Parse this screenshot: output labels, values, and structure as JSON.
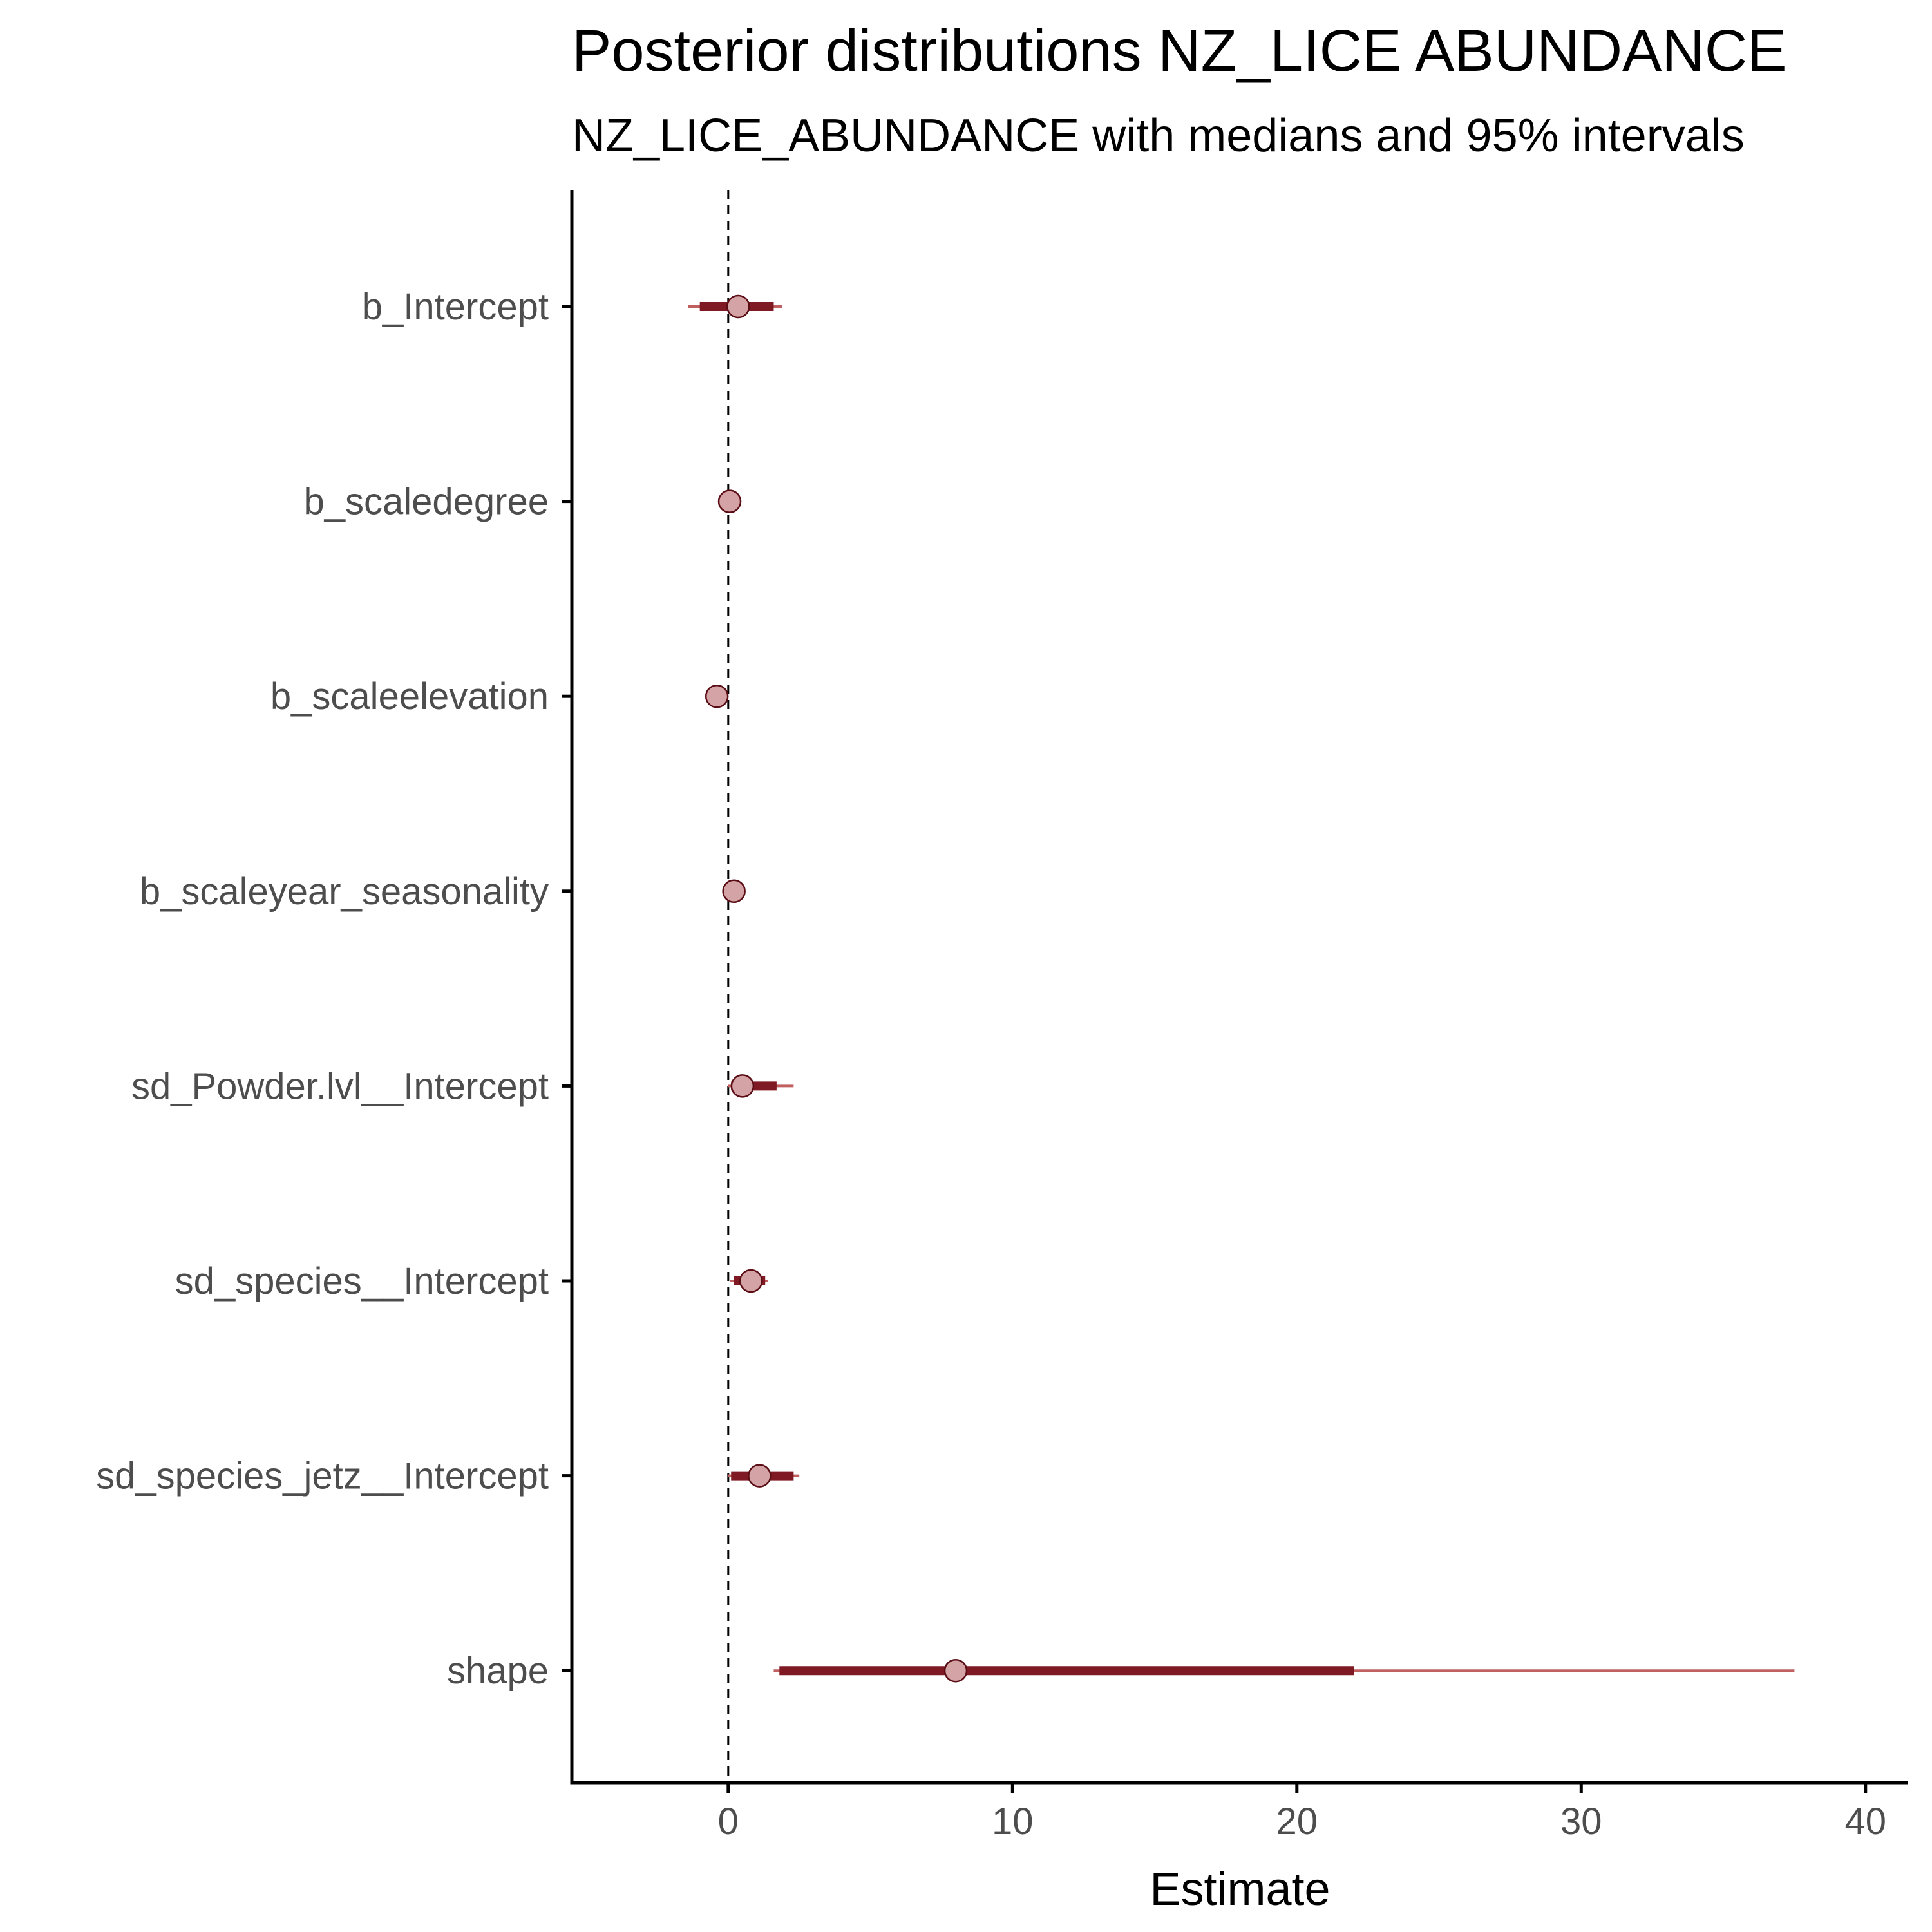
{
  "chart_data": {
    "type": "interval",
    "title": "Posterior distributions NZ_LICE ABUNDANCE",
    "subtitle": "NZ_LICE_ABUNDANCE with medians and 95% intervals",
    "xlabel": "Estimate",
    "ylabel": "",
    "xlim": [
      -5.5,
      41.5
    ],
    "xticks": [
      0,
      10,
      20,
      30,
      40
    ],
    "reference_line": 0,
    "grid": false,
    "colors": {
      "outer_interval": "#c06060",
      "inner_interval": "#7f1a24",
      "point_fill": "#d4a3a5",
      "point_stroke": "#5a0d14",
      "reference_line": "#000000",
      "axis": "#000000"
    },
    "parameters": [
      {
        "name": "b_Intercept",
        "median": 0.35,
        "inner": [
          -1.0,
          1.6
        ],
        "outer": [
          -1.4,
          1.9
        ]
      },
      {
        "name": "b_scaledegree",
        "median": 0.05,
        "inner": [
          -0.05,
          0.15
        ],
        "outer": [
          -0.1,
          0.2
        ]
      },
      {
        "name": "b_scaleelevation",
        "median": -0.4,
        "inner": [
          -0.55,
          -0.25
        ],
        "outer": [
          -0.65,
          -0.15
        ]
      },
      {
        "name": "b_scaleyear_seasonality",
        "median": 0.2,
        "inner": [
          0.1,
          0.3
        ],
        "outer": [
          0.05,
          0.35
        ]
      },
      {
        "name": "sd_Powder.lvl__Intercept",
        "median": 0.5,
        "inner": [
          0.1,
          1.7
        ],
        "outer": [
          0.0,
          2.3
        ]
      },
      {
        "name": "sd_species__Intercept",
        "median": 0.8,
        "inner": [
          0.2,
          1.3
        ],
        "outer": [
          0.05,
          1.4
        ]
      },
      {
        "name": "sd_species_jetz__Intercept",
        "median": 1.1,
        "inner": [
          0.1,
          2.3
        ],
        "outer": [
          0.0,
          2.5
        ]
      },
      {
        "name": "shape",
        "median": 8.0,
        "inner": [
          1.8,
          22.0
        ],
        "outer": [
          1.6,
          37.5
        ]
      }
    ]
  }
}
